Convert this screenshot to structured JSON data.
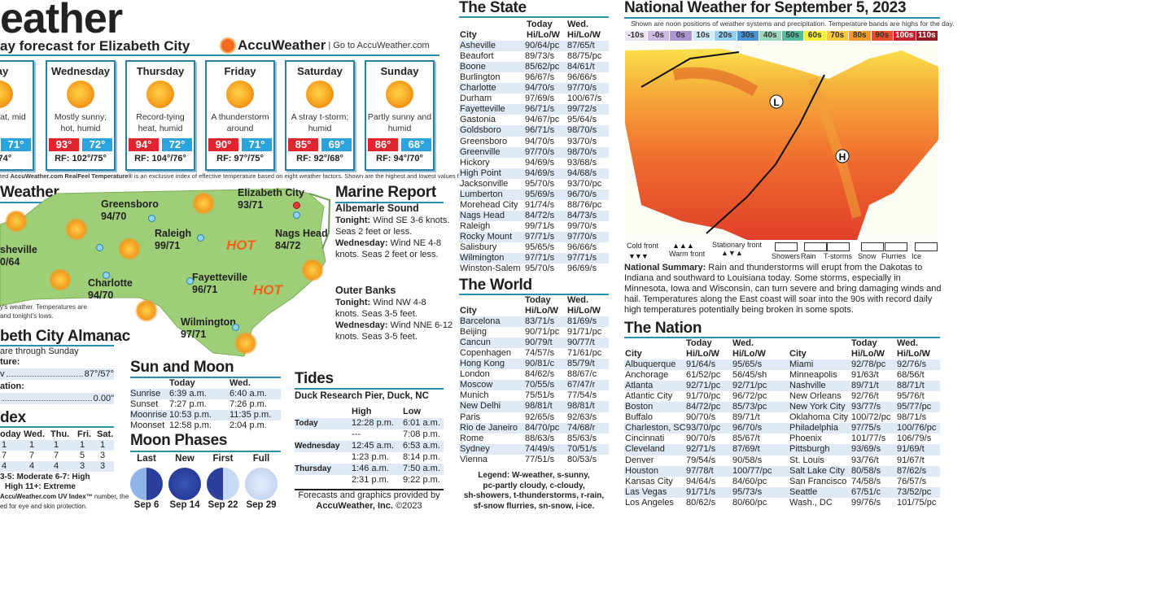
{
  "header": {
    "title": "eather",
    "subtitle": "ay forecast for Elizabeth City",
    "brand": "AccuWeather",
    "brand_link": "| Go to AccuWeather.com"
  },
  "forecast": [
    {
      "day": "day",
      "desc": "ying heat, mid",
      "hi": "",
      "lo": "71°",
      "rf": "1°/74°"
    },
    {
      "day": "Wednesday",
      "desc": "Mostly sunny; hot, humid",
      "hi": "93°",
      "lo": "72°",
      "rf": "RF: 102°/75°"
    },
    {
      "day": "Thursday",
      "desc": "Record-tying heat, humid",
      "hi": "94°",
      "lo": "72°",
      "rf": "RF: 104°/76°"
    },
    {
      "day": "Friday",
      "desc": "A thunderstorm around",
      "hi": "90°",
      "lo": "71°",
      "rf": "RF: 97°/75°"
    },
    {
      "day": "Saturday",
      "desc": "A stray t-storm; humid",
      "hi": "85°",
      "lo": "69°",
      "rf": "RF: 92°/68°"
    },
    {
      "day": "Sunday",
      "desc": "Partly sunny and humid",
      "hi": "86°",
      "lo": "68°",
      "rf": "RF: 94°/70°"
    }
  ],
  "footnote": {
    "prefix": "ted ",
    "brand": "AccuWeather.com RealFeel Temperature®",
    "text": " is an exclusive index of effective temperature based on eight weather factors. Shown are the highest and lowest values for each day."
  },
  "state_map": {
    "title": "Weather",
    "note1": "y's weather. Temperatures are",
    "note2": "and tonight's lows.",
    "hot": "HOT",
    "cities": [
      {
        "name": "Greensboro",
        "temp": "94/70"
      },
      {
        "name": "Elizabeth City",
        "temp": "93/71"
      },
      {
        "name": "Raleigh",
        "temp": "99/71"
      },
      {
        "name": "Nags Head",
        "temp": "84/72"
      },
      {
        "name": "sheville",
        "temp": "0/64"
      },
      {
        "name": "Charlotte",
        "temp": "94/70"
      },
      {
        "name": "Fayetteville",
        "temp": "96/71"
      },
      {
        "name": "Wilmington",
        "temp": "97/71"
      }
    ]
  },
  "marine": {
    "title": "Marine Report",
    "areas": [
      {
        "name": "Albemarle Sound",
        "lines": [
          [
            "Tonight:",
            " Wind SE 3-6 knots."
          ],
          [
            "",
            "Seas 2 feet or less."
          ],
          [
            "Wednesday:",
            " Wind NE 4-8"
          ],
          [
            "",
            "knots. Seas 2 feet or less."
          ]
        ]
      },
      {
        "name": "Outer Banks",
        "lines": [
          [
            "Tonight:",
            " Wind NW 4-8"
          ],
          [
            "",
            "knots. Seas 3-5 feet."
          ],
          [
            "Wednesday:",
            " Wind NNE 6-12"
          ],
          [
            "",
            "knots. Seas 3-5 feet."
          ]
        ]
      }
    ]
  },
  "almanac": {
    "title": "beth City Almanac",
    "sub": "are through Sunday",
    "temp_label": "ture:",
    "temp_row": "v",
    "temp_val": "87°/57°",
    "precip_label": "ation:",
    "precip_val": "0.00\""
  },
  "uv": {
    "title": "dex",
    "header": [
      "oday",
      "Wed.",
      "Thu.",
      "Fri.",
      "Sat."
    ],
    "rows": [
      [
        "1",
        "1",
        "1",
        "1",
        "1"
      ],
      [
        "7",
        "7",
        "7",
        "5",
        "3"
      ],
      [
        "4",
        "4",
        "4",
        "3",
        "3"
      ]
    ],
    "legend1": "3-5: Moderate    6-7: High",
    "legend2": "High   11+: Extreme",
    "note1_brand": "AccuWeather.com UV Index™",
    "note1": " number, the",
    "note2": "ed for eye and skin protection."
  },
  "sun_moon": {
    "title": "Sun and Moon",
    "header": [
      "",
      "Today",
      "Wed."
    ],
    "rows": [
      [
        "Sunrise",
        "6:39 a.m.",
        "6:40 a.m."
      ],
      [
        "Sunset",
        "7:27 p.m.",
        "7:26 p.m."
      ],
      [
        "Moonrise",
        "10:53 p.m.",
        "11:35 p.m."
      ],
      [
        "Moonset",
        "12:58 p.m.",
        "2:04 p.m."
      ]
    ]
  },
  "moon_phases": {
    "title": "Moon Phases",
    "phases": [
      {
        "name": "Last",
        "date": "Sep 6"
      },
      {
        "name": "New",
        "date": "Sep 14"
      },
      {
        "name": "First",
        "date": "Sep 22"
      },
      {
        "name": "Full",
        "date": "Sep 29"
      }
    ]
  },
  "tides": {
    "title": "Tides",
    "location": "Duck Research Pier, Duck, NC",
    "header": [
      "",
      "High",
      "Low"
    ],
    "rows": [
      [
        "Today",
        "12:28 p.m.",
        "6:01 a.m."
      ],
      [
        "",
        "---",
        "7:08 p.m."
      ],
      [
        "Wednesday",
        "12:45 a.m.",
        "6:53 a.m."
      ],
      [
        "",
        "1:23 p.m.",
        "8:14 p.m."
      ],
      [
        "Thursday",
        "1:46 a.m.",
        "7:50 a.m."
      ],
      [
        "",
        "2:31 p.m.",
        "9:22 p.m."
      ]
    ],
    "credit1": "Forecasts and graphics provided by",
    "credit2_bold": "AccuWeather, Inc.",
    "credit2": " ©2023"
  },
  "the_state": {
    "title": "The State",
    "header1": [
      "",
      "Today",
      "Wed."
    ],
    "header2": [
      "City",
      "Hi/Lo/W",
      "Hi/Lo/W"
    ],
    "rows": [
      [
        "Asheville",
        "90/64/pc",
        "87/65/t"
      ],
      [
        "Beaufort",
        "89/73/s",
        "88/75/pc"
      ],
      [
        "Boone",
        "85/62/pc",
        "84/61/t"
      ],
      [
        "Burlington",
        "96/67/s",
        "96/66/s"
      ],
      [
        "Charlotte",
        "94/70/s",
        "97/70/s"
      ],
      [
        "Durham",
        "97/69/s",
        "100/67/s"
      ],
      [
        "Fayetteville",
        "96/71/s",
        "99/72/s"
      ],
      [
        "Gastonia",
        "94/67/pc",
        "95/64/s"
      ],
      [
        "Goldsboro",
        "96/71/s",
        "98/70/s"
      ],
      [
        "Greensboro",
        "94/70/s",
        "93/70/s"
      ],
      [
        "Greenville",
        "97/70/s",
        "98/70/s"
      ],
      [
        "Hickory",
        "94/69/s",
        "93/68/s"
      ],
      [
        "High Point",
        "94/69/s",
        "94/68/s"
      ],
      [
        "Jacksonville",
        "95/70/s",
        "93/70/pc"
      ],
      [
        "Lumberton",
        "95/69/s",
        "96/70/s"
      ],
      [
        "Morehead City",
        "91/74/s",
        "88/76/pc"
      ],
      [
        "Nags Head",
        "84/72/s",
        "84/73/s"
      ],
      [
        "Raleigh",
        "99/71/s",
        "99/70/s"
      ],
      [
        "Rocky Mount",
        "97/71/s",
        "97/70/s"
      ],
      [
        "Salisbury",
        "95/65/s",
        "96/66/s"
      ],
      [
        "Wilmington",
        "97/71/s",
        "97/71/s"
      ],
      [
        "Winston-Salem",
        "95/70/s",
        "96/69/s"
      ]
    ]
  },
  "the_world": {
    "title": "The World",
    "header1": [
      "",
      "Today",
      "Wed."
    ],
    "header2": [
      "City",
      "Hi/Lo/W",
      "Hi/Lo/W"
    ],
    "rows": [
      [
        "Barcelona",
        "83/71/s",
        "81/69/s"
      ],
      [
        "Beijing",
        "90/71/pc",
        "91/71/pc"
      ],
      [
        "Cancun",
        "90/79/t",
        "90/77/t"
      ],
      [
        "Copenhagen",
        "74/57/s",
        "71/61/pc"
      ],
      [
        "Hong Kong",
        "90/81/c",
        "85/79/t"
      ],
      [
        "London",
        "84/62/s",
        "88/67/c"
      ],
      [
        "Moscow",
        "70/55/s",
        "67/47/r"
      ],
      [
        "Munich",
        "75/51/s",
        "77/54/s"
      ],
      [
        "New Delhi",
        "98/81/t",
        "98/81/t"
      ],
      [
        "Paris",
        "92/65/s",
        "92/63/s"
      ],
      [
        "Rio de Janeiro",
        "84/70/pc",
        "74/68/r"
      ],
      [
        "Rome",
        "88/63/s",
        "85/63/s"
      ],
      [
        "Sydney",
        "74/49/s",
        "70/51/s"
      ],
      [
        "Vienna",
        "77/51/s",
        "80/53/s"
      ]
    ],
    "legend": [
      "Legend: W-weather, s-sunny,",
      "pc-partly cloudy, c-cloudy,",
      "sh-showers, t-thunderstorms, r-rain,",
      "sf-snow flurries, sn-snow, i-ice."
    ]
  },
  "national": {
    "title": "National Weather for September 5, 2023",
    "subtitle": "Shown are noon positions of weather systems and precipitation. Temperature bands are highs for the day.",
    "bands": [
      {
        "label": "-10s",
        "color": "#ece6f3"
      },
      {
        "label": "-0s",
        "color": "#cdbbe3"
      },
      {
        "label": "0s",
        "color": "#ad95d3"
      },
      {
        "label": "10s",
        "color": "#d3eaf8"
      },
      {
        "label": "20s",
        "color": "#94d0f1"
      },
      {
        "label": "30s",
        "color": "#4a95d8"
      },
      {
        "label": "40s",
        "color": "#9bd8bd"
      },
      {
        "label": "50s",
        "color": "#52bd9c"
      },
      {
        "label": "60s",
        "color": "#f6ee3c"
      },
      {
        "label": "70s",
        "color": "#f8c93c"
      },
      {
        "label": "80s",
        "color": "#f29a2c"
      },
      {
        "label": "90s",
        "color": "#e8502c"
      },
      {
        "label": "100s",
        "color": "#c8222c"
      },
      {
        "label": "110s",
        "color": "#951b24"
      }
    ],
    "low_label": "L",
    "high_label": "H",
    "fronts": [
      "Cold front",
      "Warm front",
      "Stationary front"
    ],
    "precip": [
      "Showers",
      "Rain",
      "T-storms",
      "Snow",
      "Flurries",
      "Ice"
    ],
    "summary_label": "National Summary:",
    "summary": " Rain and thunderstorms will erupt from the Dakotas to Indiana and southward to Louisiana today. Some storms, especially in Minnesota, Iowa and Wisconsin, can turn severe and bring damaging winds and hail. Temperatures along the East coast will soar into the 90s with record daily high temperatures potentially being broken in some spots."
  },
  "the_nation": {
    "title": "The Nation",
    "header1": [
      "",
      "Today",
      "Wed.",
      "",
      "Today",
      "Wed."
    ],
    "header2": [
      "City",
      "Hi/Lo/W",
      "Hi/Lo/W",
      "City",
      "Hi/Lo/W",
      "Hi/Lo/W"
    ],
    "rows": [
      [
        "Albuquerque",
        "91/64/s",
        "95/65/s",
        "Miami",
        "92/78/pc",
        "92/76/s"
      ],
      [
        "Anchorage",
        "61/52/pc",
        "56/45/sh",
        "Minneapolis",
        "91/63/t",
        "68/56/t"
      ],
      [
        "Atlanta",
        "92/71/pc",
        "92/71/pc",
        "Nashville",
        "89/71/t",
        "88/71/t"
      ],
      [
        "Atlantic City",
        "91/70/pc",
        "96/72/pc",
        "New Orleans",
        "92/76/t",
        "95/76/t"
      ],
      [
        "Boston",
        "84/72/pc",
        "85/73/pc",
        "New York City",
        "93/77/s",
        "95/77/pc"
      ],
      [
        "Buffalo",
        "90/70/s",
        "89/71/t",
        "Oklahoma City",
        "100/72/pc",
        "98/71/s"
      ],
      [
        "Charleston, SC",
        "93/70/pc",
        "96/70/s",
        "Philadelphia",
        "97/75/s",
        "100/76/pc"
      ],
      [
        "Cincinnati",
        "90/70/s",
        "85/67/t",
        "Phoenix",
        "101/77/s",
        "106/79/s"
      ],
      [
        "Cleveland",
        "92/71/s",
        "87/69/t",
        "Pittsburgh",
        "93/69/s",
        "91/69/t"
      ],
      [
        "Denver",
        "79/54/s",
        "90/58/s",
        "St. Louis",
        "93/76/t",
        "91/67/t"
      ],
      [
        "Houston",
        "97/78/t",
        "100/77/pc",
        "Salt Lake City",
        "80/58/s",
        "87/62/s"
      ],
      [
        "Kansas City",
        "94/64/s",
        "84/60/pc",
        "San Francisco",
        "74/58/s",
        "76/57/s"
      ],
      [
        "Las Vegas",
        "91/71/s",
        "95/73/s",
        "Seattle",
        "67/51/c",
        "73/52/pc"
      ],
      [
        "Los Angeles",
        "80/62/s",
        "80/60/pc",
        "Wash., DC",
        "99/76/s",
        "101/75/pc"
      ]
    ]
  }
}
